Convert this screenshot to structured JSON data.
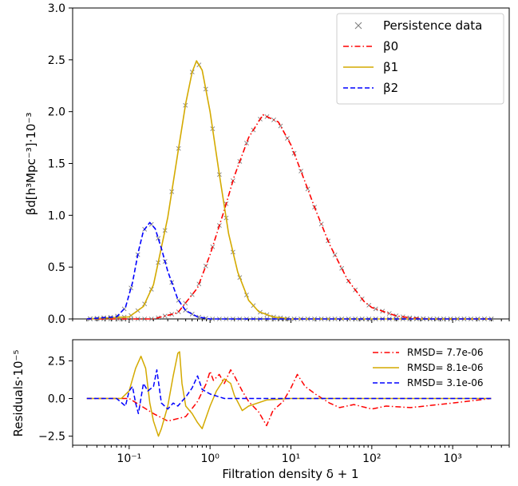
{
  "colors": {
    "beta0": "#ff0000",
    "beta1": "#d4aa00",
    "beta2": "#0000ff",
    "data_marker": "#808080"
  },
  "chart_data": [
    {
      "type": "line",
      "panel": "top",
      "xscale": "log",
      "xlim": [
        0.02,
        5000
      ],
      "ylim": [
        0,
        3.0
      ],
      "yticks": [
        0.0,
        0.5,
        1.0,
        1.5,
        2.0,
        2.5,
        3.0
      ],
      "ytick_labels": [
        "0.0",
        "0.5",
        "1.0",
        "1.5",
        "2.0",
        "2.5",
        "3.0"
      ],
      "ylabel": "βd[h³Mpc⁻³]·10⁻³",
      "legend_position": "top-right",
      "series": [
        {
          "name": "Persistence data",
          "style": "markers-x",
          "color": "#808080",
          "note_points": "sampled on the β0, β1, β2 curves"
        },
        {
          "name": "β0",
          "style": "dash-dot",
          "color": "#ff0000",
          "x": [
            0.03,
            0.2,
            0.4,
            0.7,
            1.0,
            1.5,
            2.0,
            3.0,
            4.5,
            7.0,
            10,
            15,
            20,
            30,
            50,
            80,
            100,
            200,
            300,
            500,
            1000,
            3000
          ],
          "y": [
            0.0,
            0.0,
            0.06,
            0.3,
            0.62,
            1.05,
            1.38,
            1.75,
            1.97,
            1.9,
            1.68,
            1.32,
            1.06,
            0.72,
            0.38,
            0.17,
            0.11,
            0.03,
            0.01,
            0.0,
            0.0,
            0.0
          ]
        },
        {
          "name": "β1",
          "style": "solid",
          "color": "#d4aa00",
          "x": [
            0.03,
            0.1,
            0.15,
            0.2,
            0.3,
            0.4,
            0.5,
            0.6,
            0.68,
            0.8,
            1.0,
            1.3,
            1.7,
            2.2,
            3.0,
            4.0,
            6.0,
            10,
            30,
            3000
          ],
          "y": [
            0.0,
            0.02,
            0.12,
            0.33,
            0.98,
            1.6,
            2.08,
            2.38,
            2.49,
            2.4,
            2.0,
            1.4,
            0.82,
            0.45,
            0.18,
            0.07,
            0.02,
            0.0,
            0.0,
            0.0
          ]
        },
        {
          "name": "β2",
          "style": "dashed",
          "color": "#0000ff",
          "x": [
            0.03,
            0.07,
            0.09,
            0.11,
            0.13,
            0.15,
            0.18,
            0.21,
            0.25,
            0.3,
            0.4,
            0.5,
            0.7,
            1.0,
            3000
          ],
          "y": [
            0.0,
            0.02,
            0.11,
            0.35,
            0.65,
            0.85,
            0.93,
            0.87,
            0.68,
            0.46,
            0.19,
            0.08,
            0.02,
            0.0,
            0.0
          ]
        }
      ]
    },
    {
      "type": "line",
      "panel": "bottom",
      "xscale": "log",
      "xlim": [
        0.02,
        5000
      ],
      "xticks": [
        0.1,
        1,
        10,
        100,
        1000
      ],
      "xtick_labels": [
        "10⁻¹",
        "10⁰",
        "10¹",
        "10²",
        "10³"
      ],
      "ylim": [
        -3.1,
        3.9
      ],
      "yticks": [
        -2.5,
        0.0,
        2.5
      ],
      "ytick_labels": [
        "−2.5",
        "0.0",
        "2.5"
      ],
      "ylabel": "Residuals·10⁻⁵",
      "xlabel": "Filtration density δ + 1",
      "legend_position": "top-right",
      "series": [
        {
          "name": "RMSD=   7.7e-06",
          "style": "dash-dot",
          "color": "#ff0000",
          "x": [
            0.03,
            0.1,
            0.2,
            0.3,
            0.5,
            0.7,
            0.9,
            1.0,
            1.1,
            1.3,
            1.5,
            1.8,
            2.0,
            2.5,
            3.0,
            4.0,
            5.0,
            6.0,
            8.0,
            10,
            12,
            15,
            20,
            30,
            40,
            60,
            100,
            150,
            300,
            1000,
            3000
          ],
          "y": [
            0.0,
            0.0,
            -1.0,
            -1.5,
            -1.2,
            -0.2,
            1.0,
            1.8,
            1.2,
            1.6,
            1.0,
            1.9,
            1.5,
            0.5,
            -0.2,
            -0.9,
            -1.8,
            -0.8,
            -0.2,
            0.7,
            1.6,
            0.8,
            0.3,
            -0.3,
            -0.6,
            -0.4,
            -0.7,
            -0.5,
            -0.6,
            -0.3,
            0.0
          ]
        },
        {
          "name": "RMSD=   8.1e-06",
          "style": "solid",
          "color": "#d4aa00",
          "x": [
            0.03,
            0.08,
            0.1,
            0.12,
            0.14,
            0.16,
            0.18,
            0.2,
            0.23,
            0.25,
            0.3,
            0.35,
            0.4,
            0.42,
            0.45,
            0.5,
            0.6,
            0.7,
            0.8,
            1.0,
            1.2,
            1.5,
            1.8,
            2.0,
            2.5,
            3.0,
            5.0,
            10,
            3000
          ],
          "y": [
            0.0,
            0.0,
            0.5,
            2.0,
            2.8,
            2.0,
            -0.3,
            -1.5,
            -2.5,
            -2.0,
            -0.5,
            1.5,
            3.0,
            3.1,
            1.0,
            -0.5,
            -1.0,
            -1.6,
            -2.0,
            -0.5,
            0.5,
            1.3,
            1.0,
            0.2,
            -0.8,
            -0.5,
            -0.1,
            0.0,
            0.0
          ]
        },
        {
          "name": "RMSD=   3.1e-06",
          "style": "dashed",
          "color": "#0000ff",
          "x": [
            0.03,
            0.07,
            0.09,
            0.1,
            0.11,
            0.12,
            0.13,
            0.15,
            0.17,
            0.2,
            0.22,
            0.25,
            0.3,
            0.35,
            0.4,
            0.5,
            0.6,
            0.7,
            0.8,
            1.0,
            1.5,
            3000
          ],
          "y": [
            0.0,
            0.0,
            -0.5,
            0.5,
            0.8,
            -0.3,
            -1.0,
            1.0,
            0.5,
            0.8,
            1.9,
            -0.3,
            -0.7,
            -0.3,
            -0.5,
            0.1,
            0.7,
            1.5,
            0.6,
            0.3,
            0.0,
            0.0
          ]
        }
      ]
    }
  ]
}
